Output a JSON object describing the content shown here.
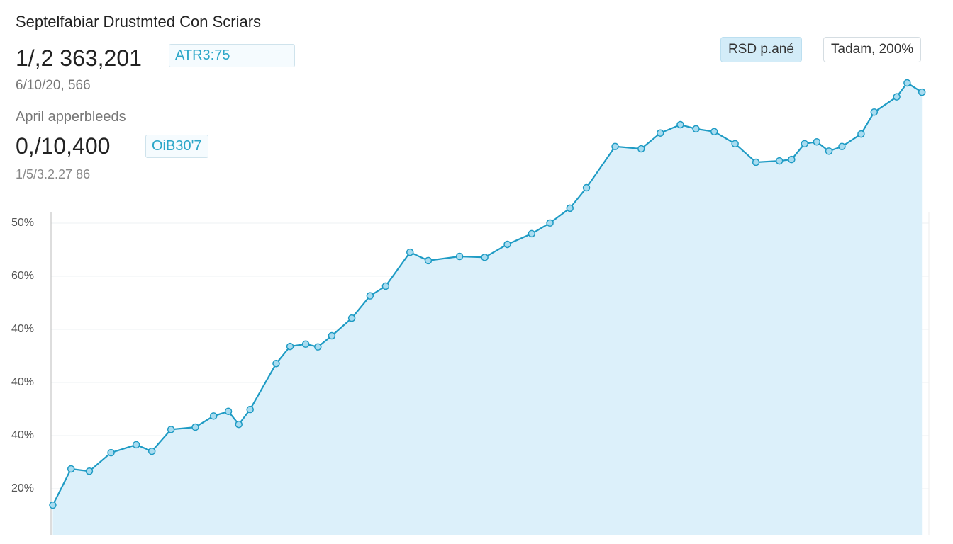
{
  "header": {
    "title": "Septelfabiar Drustmted Con Scriars",
    "primary_value": "1/,2 363,201",
    "primary_badge": "ATR3:75",
    "primary_sub": "6/10/20, 566",
    "secondary_caption": "April apperbleeds",
    "secondary_value": "0,/10,400",
    "secondary_badge": "OiB30'7",
    "secondary_sub": "1/5/3.2.27 86",
    "buttons": [
      "RSD p.ané",
      "Tadam, 200%"
    ]
  },
  "chart_data": {
    "type": "area",
    "color": "#1e9bc4",
    "fill": "#dcf0fa",
    "y_axis_labels": [
      "50%",
      "60%",
      "40%",
      "40%",
      "40%",
      "20%"
    ],
    "xlim": [
      0,
      101
    ],
    "ylim": [
      0,
      100
    ],
    "x": [
      0.2,
      2.3,
      4.4,
      6.9,
      9.8,
      11.6,
      13.8,
      16.6,
      18.7,
      20.4,
      21.6,
      22.9,
      25.9,
      27.5,
      29.3,
      30.7,
      32.3,
      34.6,
      36.7,
      38.5,
      41.3,
      43.4,
      47.0,
      49.9,
      52.5,
      55.3,
      57.4,
      59.7,
      61.6,
      64.9,
      67.9,
      70.1,
      72.4,
      74.2,
      76.3,
      78.7,
      81.1,
      83.8,
      85.2,
      86.7,
      88.1,
      89.5,
      91.0,
      93.2,
      94.7,
      97.3,
      98.5,
      100.2
    ],
    "values": [
      6.4,
      14.2,
      13.7,
      17.7,
      19.4,
      18.0,
      22.7,
      23.2,
      25.6,
      26.6,
      23.8,
      27.0,
      36.9,
      40.6,
      41.1,
      40.5,
      42.9,
      46.7,
      51.5,
      53.6,
      60.9,
      59.1,
      60.0,
      59.8,
      62.6,
      64.9,
      67.2,
      70.4,
      74.8,
      83.7,
      83.2,
      86.6,
      88.4,
      87.5,
      86.9,
      84.3,
      80.3,
      80.6,
      80.9,
      84.3,
      84.7,
      82.7,
      83.7,
      86.4,
      91.1,
      94.4,
      97.4,
      95.4
    ]
  }
}
